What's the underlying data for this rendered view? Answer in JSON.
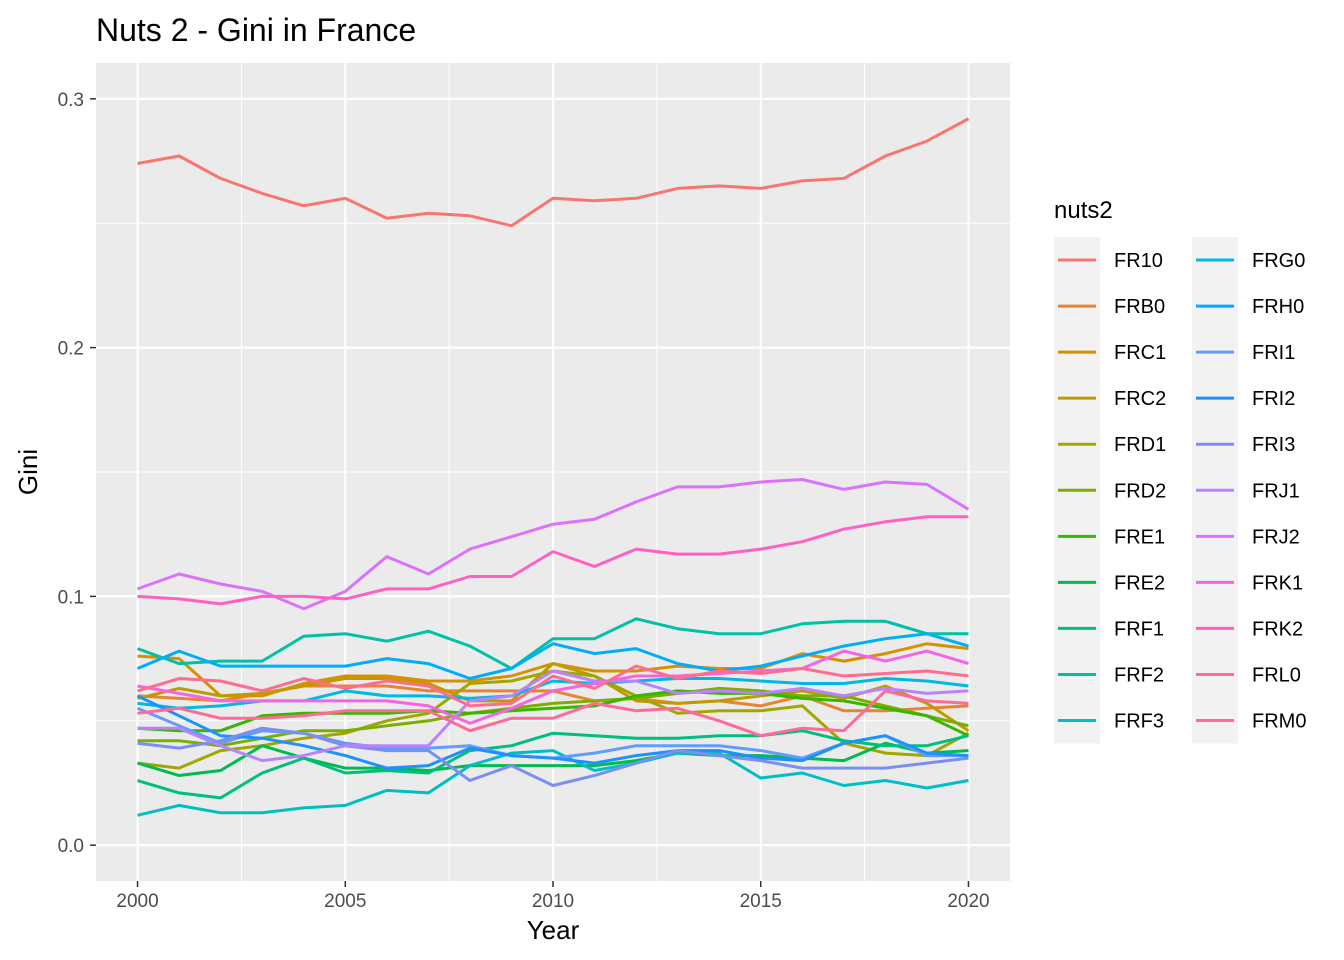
{
  "chart_data": {
    "type": "line",
    "title": "Nuts 2 - Gini in France",
    "xlabel": "Year",
    "ylabel": "Gini",
    "xlim": [
      2000,
      2020
    ],
    "ylim": [
      0.0,
      0.3
    ],
    "x_ticks": [
      2000,
      2005,
      2010,
      2015,
      2020
    ],
    "x_tick_labels": [
      "2000",
      "2005",
      "2010",
      "2015",
      "2020"
    ],
    "y_ticks": [
      0.0,
      0.1,
      0.2,
      0.3
    ],
    "y_tick_labels": [
      "0.0",
      "0.1",
      "0.2",
      "0.3"
    ],
    "grid": true,
    "legend": {
      "title": "nuts2",
      "placement": "right",
      "columns": 2
    },
    "x": [
      2000,
      2001,
      2002,
      2003,
      2004,
      2005,
      2006,
      2007,
      2008,
      2009,
      2010,
      2011,
      2012,
      2013,
      2014,
      2015,
      2016,
      2017,
      2018,
      2019,
      2020
    ],
    "series": [
      {
        "name": "FR10",
        "color": "#F8766D",
        "values": [
          0.274,
          0.277,
          0.268,
          0.262,
          0.257,
          0.26,
          0.252,
          0.254,
          0.253,
          0.249,
          0.26,
          0.259,
          0.26,
          0.264,
          0.265,
          0.264,
          0.267,
          0.268,
          0.277,
          0.283,
          0.292
        ]
      },
      {
        "name": "FRB0",
        "color": "#EA8331",
        "values": [
          0.06,
          0.059,
          0.058,
          0.061,
          0.064,
          0.064,
          0.064,
          0.062,
          0.062,
          0.062,
          0.062,
          0.058,
          0.059,
          0.057,
          0.058,
          0.056,
          0.06,
          0.054,
          0.054,
          0.055,
          0.056
        ]
      },
      {
        "name": "FRC1",
        "color": "#D89000",
        "values": [
          0.076,
          0.075,
          0.06,
          0.06,
          0.065,
          0.068,
          0.068,
          0.066,
          0.066,
          0.068,
          0.073,
          0.07,
          0.07,
          0.072,
          0.071,
          0.071,
          0.077,
          0.074,
          0.077,
          0.081,
          0.079
        ]
      },
      {
        "name": "FRC2",
        "color": "#C09B00",
        "values": [
          0.059,
          0.063,
          0.06,
          0.061,
          0.064,
          0.067,
          0.067,
          0.065,
          0.058,
          0.058,
          0.073,
          0.068,
          0.058,
          0.057,
          0.058,
          0.06,
          0.062,
          0.059,
          0.064,
          0.057,
          0.046
        ]
      },
      {
        "name": "FRD1",
        "color": "#A3A500",
        "values": [
          0.033,
          0.031,
          0.038,
          0.04,
          0.043,
          0.045,
          0.05,
          0.053,
          0.065,
          0.066,
          0.07,
          0.068,
          0.06,
          0.053,
          0.054,
          0.054,
          0.056,
          0.041,
          0.037,
          0.036,
          0.045
        ]
      },
      {
        "name": "FRD2",
        "color": "#7CAE00",
        "values": [
          0.042,
          0.042,
          0.04,
          0.043,
          0.046,
          0.046,
          0.048,
          0.05,
          0.053,
          0.055,
          0.057,
          0.058,
          0.059,
          0.061,
          0.063,
          0.062,
          0.06,
          0.06,
          0.056,
          0.052,
          0.048
        ]
      },
      {
        "name": "FRE1",
        "color": "#39B600",
        "values": [
          0.047,
          0.046,
          0.046,
          0.052,
          0.053,
          0.053,
          0.053,
          0.054,
          0.053,
          0.054,
          0.055,
          0.056,
          0.06,
          0.062,
          0.061,
          0.061,
          0.059,
          0.058,
          0.055,
          0.052,
          0.044
        ]
      },
      {
        "name": "FRE2",
        "color": "#00BB4E",
        "values": [
          0.033,
          0.028,
          0.03,
          0.04,
          0.035,
          0.031,
          0.031,
          0.03,
          0.032,
          0.032,
          0.032,
          0.032,
          0.034,
          0.037,
          0.036,
          0.036,
          0.035,
          0.034,
          0.041,
          0.037,
          0.038
        ]
      },
      {
        "name": "FRF1",
        "color": "#00BF7D",
        "values": [
          0.026,
          0.021,
          0.019,
          0.029,
          0.035,
          0.029,
          0.03,
          0.029,
          0.038,
          0.04,
          0.045,
          0.044,
          0.043,
          0.043,
          0.044,
          0.044,
          0.046,
          0.042,
          0.04,
          0.04,
          0.044
        ]
      },
      {
        "name": "FRF2",
        "color": "#00C1A3",
        "values": [
          0.079,
          0.073,
          0.074,
          0.074,
          0.084,
          0.085,
          0.082,
          0.086,
          0.08,
          0.071,
          0.083,
          0.083,
          0.091,
          0.087,
          0.085,
          0.085,
          0.089,
          0.09,
          0.09,
          0.085,
          0.085
        ]
      },
      {
        "name": "FRF3",
        "color": "#00BFC4",
        "values": [
          0.012,
          0.016,
          0.013,
          0.013,
          0.015,
          0.016,
          0.022,
          0.021,
          0.032,
          0.037,
          0.038,
          0.03,
          0.033,
          0.037,
          0.037,
          0.027,
          0.029,
          0.024,
          0.026,
          0.023,
          0.026
        ]
      },
      {
        "name": "FRG0",
        "color": "#00B9E3",
        "values": [
          0.057,
          0.055,
          0.056,
          0.058,
          0.058,
          0.062,
          0.06,
          0.06,
          0.059,
          0.06,
          0.066,
          0.065,
          0.066,
          0.067,
          0.067,
          0.066,
          0.065,
          0.065,
          0.067,
          0.066,
          0.064
        ]
      },
      {
        "name": "FRH0",
        "color": "#00ADFA",
        "values": [
          0.071,
          0.078,
          0.072,
          0.072,
          0.072,
          0.072,
          0.075,
          0.073,
          0.067,
          0.071,
          0.081,
          0.077,
          0.079,
          0.073,
          0.07,
          0.072,
          0.076,
          0.08,
          0.083,
          0.085,
          0.08
        ]
      },
      {
        "name": "FRI1",
        "color": "#619CFF",
        "values": [
          0.055,
          0.048,
          0.041,
          0.046,
          0.045,
          0.041,
          0.039,
          0.039,
          0.04,
          0.036,
          0.035,
          0.037,
          0.04,
          0.04,
          0.04,
          0.038,
          0.035,
          0.041,
          0.044,
          0.036,
          0.036
        ]
      },
      {
        "name": "FRI2",
        "color": "#1E90FF",
        "values": [
          0.06,
          0.052,
          0.044,
          0.043,
          0.04,
          0.036,
          0.031,
          0.032,
          0.039,
          0.036,
          0.035,
          0.033,
          0.036,
          0.038,
          0.038,
          0.035,
          0.034,
          0.041,
          0.044,
          0.037,
          0.036
        ]
      },
      {
        "name": "FRI3",
        "color": "#7B8FF0",
        "values": [
          0.041,
          0.039,
          0.042,
          0.047,
          0.045,
          0.04,
          0.038,
          0.038,
          0.026,
          0.032,
          0.024,
          0.028,
          0.033,
          0.038,
          0.036,
          0.034,
          0.031,
          0.031,
          0.031,
          0.033,
          0.035
        ]
      },
      {
        "name": "FRJ1",
        "color": "#B983FF",
        "values": [
          0.047,
          0.047,
          0.04,
          0.034,
          0.036,
          0.04,
          0.04,
          0.04,
          0.058,
          0.06,
          0.07,
          0.066,
          0.066,
          0.061,
          0.062,
          0.061,
          0.063,
          0.06,
          0.063,
          0.061,
          0.062
        ]
      },
      {
        "name": "FRJ2",
        "color": "#DB72FB",
        "values": [
          0.103,
          0.109,
          0.105,
          0.102,
          0.095,
          0.102,
          0.116,
          0.109,
          0.119,
          0.124,
          0.129,
          0.131,
          0.138,
          0.144,
          0.144,
          0.146,
          0.147,
          0.143,
          0.146,
          0.145,
          0.135
        ]
      },
      {
        "name": "FRK1",
        "color": "#F564E3",
        "values": [
          0.064,
          0.061,
          0.058,
          0.058,
          0.058,
          0.058,
          0.058,
          0.056,
          0.049,
          0.055,
          0.062,
          0.065,
          0.068,
          0.068,
          0.069,
          0.07,
          0.071,
          0.078,
          0.074,
          0.078,
          0.073
        ]
      },
      {
        "name": "FRK2",
        "color": "#FF61C3",
        "values": [
          0.1,
          0.099,
          0.097,
          0.1,
          0.1,
          0.099,
          0.103,
          0.103,
          0.108,
          0.108,
          0.118,
          0.112,
          0.119,
          0.117,
          0.117,
          0.119,
          0.122,
          0.127,
          0.13,
          0.132,
          0.132
        ]
      },
      {
        "name": "FRL0",
        "color": "#FF6C91",
        "values": [
          0.062,
          0.067,
          0.066,
          0.062,
          0.067,
          0.063,
          0.066,
          0.064,
          0.056,
          0.057,
          0.068,
          0.063,
          0.072,
          0.067,
          0.07,
          0.069,
          0.071,
          0.068,
          0.069,
          0.07,
          0.068
        ]
      },
      {
        "name": "FRM0",
        "color": "#FF6A98",
        "values": [
          0.053,
          0.055,
          0.051,
          0.051,
          0.052,
          0.054,
          0.054,
          0.054,
          0.046,
          0.051,
          0.051,
          0.057,
          0.054,
          0.055,
          0.05,
          0.044,
          0.047,
          0.046,
          0.062,
          0.058,
          0.057
        ]
      }
    ]
  }
}
